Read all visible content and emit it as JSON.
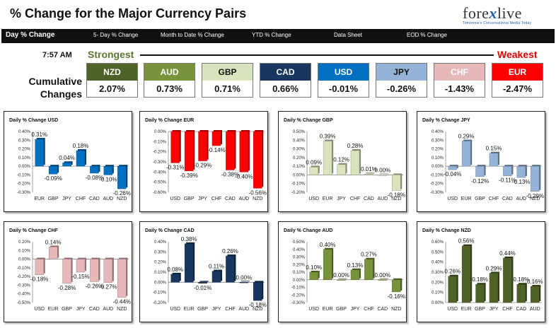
{
  "header": {
    "title": "% Change for the Major Currency Pairs",
    "logo": {
      "brand_prefix": "fore",
      "brand_x": "x",
      "brand_suffix": "live",
      "tagline": "Tomorrow's Conversational Media Today"
    },
    "tabs": [
      {
        "label": "Day % Change",
        "active": true
      },
      {
        "label": "5- Day % Change",
        "active": false
      },
      {
        "label": "Month to Date % Change",
        "active": false
      },
      {
        "label": "YTD % Change",
        "active": false
      },
      {
        "label": "Data Sheet",
        "active": false
      },
      {
        "label": "EOD % Change",
        "active": false
      }
    ]
  },
  "summary": {
    "time": "7:57 AM",
    "strongest_label": "Strongest",
    "weakest_label": "Weakest",
    "cumulative_label": "Cumulative Changes",
    "currencies": [
      {
        "name": "NZD",
        "value": "2.07%",
        "color": "#4f6228",
        "text_color": "#ffffff"
      },
      {
        "name": "AUD",
        "value": "0.73%",
        "color": "#77933c",
        "text_color": "#ffffff"
      },
      {
        "name": "GBP",
        "value": "0.71%",
        "color": "#d7e4bd",
        "text_color": "#111111"
      },
      {
        "name": "CAD",
        "value": "0.66%",
        "color": "#17375e",
        "text_color": "#ffffff"
      },
      {
        "name": "USD",
        "value": "-0.01%",
        "color": "#0070c0",
        "text_color": "#ffffff"
      },
      {
        "name": "JPY",
        "value": "-0.26%",
        "color": "#95b3d7",
        "text_color": "#111111"
      },
      {
        "name": "CHF",
        "value": "-1.43%",
        "color": "#e6b9b8",
        "text_color": "#ffffff"
      },
      {
        "name": "EUR",
        "value": "-2.47%",
        "color": "#ff0000",
        "text_color": "#ffffff"
      }
    ]
  },
  "chart_data": [
    {
      "type": "bar",
      "title": "Daily % Change USD",
      "categories": [
        "EUR",
        "GBP",
        "JPY",
        "CHF",
        "CAD",
        "AUD",
        "NZD"
      ],
      "values": [
        0.31,
        -0.09,
        0.04,
        0.18,
        -0.08,
        -0.1,
        -0.26
      ],
      "labels": [
        "0.31%",
        "-0.09%",
        "0.04%",
        "0.18%",
        "-0.08%",
        "-0.10%",
        "-0.26%"
      ],
      "ylim": [
        -0.3,
        0.4
      ],
      "yticks": [
        "-0.30%",
        "-0.20%",
        "-0.10%",
        "0.00%",
        "0.10%",
        "0.20%",
        "0.30%",
        "0.40%"
      ],
      "color": "#0070c0"
    },
    {
      "type": "bar",
      "title": "Daily % Change EUR",
      "categories": [
        "USD",
        "GBP",
        "JPY",
        "CHF",
        "CAD",
        "AUD",
        "NZD"
      ],
      "values": [
        -0.31,
        -0.39,
        -0.29,
        -0.14,
        -0.38,
        -0.4,
        -0.56
      ],
      "labels": [
        "-0.31%",
        "-0.39%",
        "-0.29%",
        "-0.14%",
        "-0.38%",
        "-0.40%",
        "-0.56%"
      ],
      "ylim": [
        -0.6,
        0.0
      ],
      "yticks": [
        "-0.60%",
        "-0.50%",
        "-0.40%",
        "-0.30%",
        "-0.20%",
        "-0.10%",
        "0.00%"
      ],
      "color": "#ff0000"
    },
    {
      "type": "bar",
      "title": "Daily % Change GBP",
      "categories": [
        "USD",
        "EUR",
        "JPY",
        "CHF",
        "CAD",
        "AUD",
        "NZD"
      ],
      "values": [
        0.09,
        0.39,
        0.12,
        0.28,
        0.01,
        0.0,
        -0.18
      ],
      "labels": [
        "0.09%",
        "0.39%",
        "0.12%",
        "0.28%",
        "0.01%",
        "0.00%",
        "-0.18%"
      ],
      "ylim": [
        -0.2,
        0.5
      ],
      "yticks": [
        "-0.20%",
        "-0.10%",
        "0.00%",
        "0.10%",
        "0.20%",
        "0.30%",
        "0.40%",
        "0.50%"
      ],
      "color": "#d7e4bd"
    },
    {
      "type": "bar",
      "title": "Daily % Change JPY",
      "categories": [
        "USD",
        "EUR",
        "GBP",
        "CHF",
        "CAD",
        "AUD",
        "NZD"
      ],
      "values": [
        -0.04,
        0.29,
        -0.12,
        0.15,
        -0.11,
        -0.13,
        -0.29
      ],
      "labels": [
        "-0.04%",
        "0.29%",
        "-0.12%",
        "0.15%",
        "-0.11%",
        "-0.13%",
        "-0.29%"
      ],
      "ylim": [
        -0.3,
        0.4
      ],
      "yticks": [
        "-0.30%",
        "-0.20%",
        "-0.10%",
        "0.00%",
        "0.10%",
        "0.20%",
        "0.30%",
        "0.40%"
      ],
      "color": "#95b3d7"
    },
    {
      "type": "bar",
      "title": "Daily % Change CHF",
      "categories": [
        "USD",
        "EUR",
        "GBP",
        "JPY",
        "CAD",
        "AUD",
        "NZD"
      ],
      "values": [
        -0.18,
        0.14,
        -0.28,
        -0.15,
        -0.26,
        -0.27,
        -0.44
      ],
      "labels": [
        "-0.18%",
        "0.14%",
        "-0.28%",
        "-0.15%",
        "-0.26%",
        "-0.27%",
        "-0.44%"
      ],
      "ylim": [
        -0.5,
        0.2
      ],
      "yticks": [
        "-0.50%",
        "-0.40%",
        "-0.30%",
        "-0.20%",
        "-0.10%",
        "0.00%",
        "0.10%",
        "0.20%"
      ],
      "color": "#e6b9b8"
    },
    {
      "type": "bar",
      "title": "Daily % Change CAD",
      "categories": [
        "USD",
        "EUR",
        "GBP",
        "JPY",
        "CHF",
        "AUD",
        "NZD"
      ],
      "values": [
        0.08,
        0.38,
        -0.01,
        0.11,
        0.26,
        0.0,
        -0.18
      ],
      "labels": [
        "0.08%",
        "0.38%",
        "-0.01%",
        "0.11%",
        "0.26%",
        "0.00%",
        "-0.18%"
      ],
      "ylim": [
        -0.2,
        0.4
      ],
      "yticks": [
        "-0.20%",
        "-0.10%",
        "0.00%",
        "0.10%",
        "0.20%",
        "0.30%",
        "0.40%"
      ],
      "color": "#17375e"
    },
    {
      "type": "bar",
      "title": "Daily % Change AUD",
      "categories": [
        "USD",
        "EUR",
        "GBP",
        "JPY",
        "CHF",
        "CAD",
        "NZD"
      ],
      "values": [
        0.1,
        0.4,
        0.0,
        0.13,
        0.27,
        0.0,
        -0.16
      ],
      "labels": [
        "0.10%",
        "0.40%",
        "0.00%",
        "0.13%",
        "0.27%",
        "0.00%",
        "-0.16%"
      ],
      "ylim": [
        -0.3,
        0.5
      ],
      "yticks": [
        "-0.30%",
        "-0.20%",
        "-0.10%",
        "0.00%",
        "0.10%",
        "0.20%",
        "0.30%",
        "0.40%",
        "0.50%"
      ],
      "color": "#77933c"
    },
    {
      "type": "bar",
      "title": "Daily % Change NZD",
      "categories": [
        "USD",
        "EUR",
        "GBP",
        "JPY",
        "CHF",
        "CAD",
        "AUD"
      ],
      "values": [
        0.26,
        0.56,
        0.18,
        0.29,
        0.44,
        0.18,
        0.16
      ],
      "labels": [
        "0.26%",
        "0.56%",
        "0.18%",
        "0.29%",
        "0.44%",
        "0.18%",
        "0.16%"
      ],
      "ylim": [
        0.0,
        0.6
      ],
      "yticks": [
        "0.00%",
        "0.10%",
        "0.20%",
        "0.30%",
        "0.40%",
        "0.50%",
        "0.60%"
      ],
      "color": "#4f6228"
    }
  ]
}
